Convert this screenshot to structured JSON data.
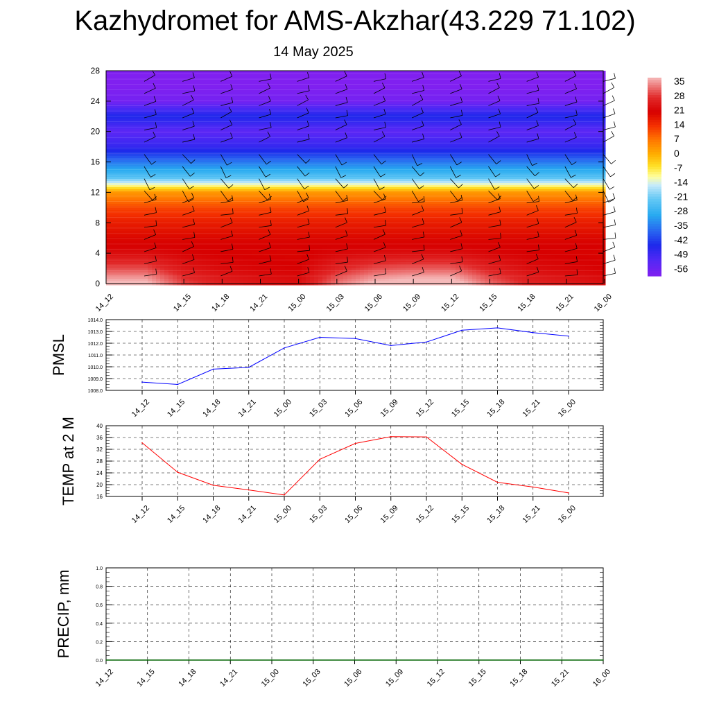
{
  "title": "Kazhydromet for AMS-Akzhar(43.229 71.102)",
  "subtitle": "14 May 2025",
  "colors": {
    "pmsl_line": "#0000ff",
    "temp_line": "#ff0000",
    "precip_line": "#006400",
    "grid": "#000000"
  },
  "chart_data": [
    {
      "id": "cross-section",
      "type": "heatmap",
      "title": "",
      "xlabel": "",
      "ylabel": "",
      "x": [
        "14_12",
        "14_15",
        "14_18",
        "14_21",
        "15_00",
        "15_03",
        "15_06",
        "15_09",
        "15_12",
        "15_15",
        "15_18",
        "15_21",
        "16_00"
      ],
      "y_ticks": [
        0,
        4,
        8,
        12,
        16,
        20,
        24,
        28
      ],
      "ylim": [
        0,
        28
      ],
      "colorbar_labels": [
        "35",
        "28",
        "21",
        "14",
        "7",
        "0",
        "-7",
        "-14",
        "-21",
        "-28",
        "-35",
        "-42",
        "-49",
        "-56"
      ],
      "colorbar_range": [
        -60,
        38
      ],
      "temperature_profile": {
        "levels": [
          0,
          2,
          4,
          6,
          8,
          10,
          12,
          13,
          14,
          16,
          18,
          20,
          22,
          24,
          26,
          28
        ],
        "values": [
          32,
          26,
          22,
          20,
          17,
          12,
          3,
          -12,
          -24,
          -36,
          -48,
          -54,
          -45,
          -58,
          -60,
          -60
        ]
      },
      "surface_temperature_by_time": [
        34,
        24,
        20,
        18,
        17,
        28,
        34,
        36,
        36,
        27,
        21,
        19,
        17
      ],
      "wind_barbs": "present"
    },
    {
      "id": "pmsl",
      "type": "line",
      "title": "",
      "xlabel": "",
      "ylabel": "PMSL",
      "categories": [
        "14_12",
        "14_15",
        "14_18",
        "14_21",
        "15_00",
        "15_03",
        "15_06",
        "15_09",
        "15_12",
        "15_15",
        "15_18",
        "15_21",
        "16_00"
      ],
      "values": [
        1008.7,
        1008.5,
        1009.8,
        1009.95,
        1011.6,
        1012.5,
        1012.4,
        1011.8,
        1012.1,
        1013.1,
        1013.3,
        1012.9,
        1012.6
      ],
      "y_ticks": [
        "1008.0",
        "1009.0",
        "1010.0",
        "1011.0",
        "1012.0",
        "1013.0",
        "1014.0"
      ],
      "ylim": [
        1008,
        1014
      ],
      "grid": true
    },
    {
      "id": "temp2m",
      "type": "line",
      "title": "",
      "xlabel": "",
      "ylabel": "TEMP at 2 M",
      "categories": [
        "14_12",
        "14_15",
        "14_18",
        "14_21",
        "15_00",
        "15_03",
        "15_06",
        "15_09",
        "15_12",
        "15_15",
        "15_18",
        "15_21",
        "16_00"
      ],
      "values": [
        34.2,
        24.2,
        19.8,
        18.2,
        16.5,
        28.6,
        34,
        36.3,
        36.2,
        26.9,
        20.8,
        19.2,
        17.2
      ],
      "y_ticks": [
        "16",
        "20",
        "24",
        "28",
        "32",
        "36",
        "40"
      ],
      "ylim": [
        16,
        40
      ],
      "grid": true
    },
    {
      "id": "precip",
      "type": "line",
      "title": "",
      "xlabel": "",
      "ylabel": "PRECIP, mm",
      "categories": [
        "14_12",
        "14_15",
        "14_18",
        "14_21",
        "15_00",
        "15_03",
        "15_06",
        "15_09",
        "15_12",
        "15_15",
        "15_18",
        "15_21",
        "16_00"
      ],
      "values": [
        0,
        0,
        0,
        0,
        0,
        0,
        0,
        0,
        0,
        0,
        0,
        0,
        0
      ],
      "y_ticks": [
        "0.0",
        "0.2",
        "0.4",
        "0.6",
        "0.8",
        "1.0"
      ],
      "ylim": [
        0,
        1
      ],
      "grid": true
    }
  ]
}
